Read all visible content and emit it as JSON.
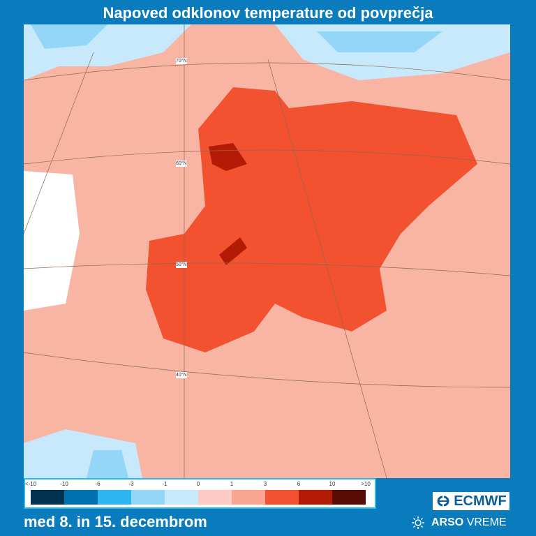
{
  "title": "Napoved odklonov temperature od povprečja",
  "period": "med 8. in 15. decembrom",
  "latitude_labels": [
    "70°N",
    "60°N",
    "50°N",
    "40°N"
  ],
  "legend": {
    "labels": [
      "<-10",
      "-10",
      "-6",
      "-3",
      "-1",
      "0",
      "1",
      "3",
      "6",
      "10",
      ">10"
    ],
    "colors": [
      "#01324f",
      "#0070b0",
      "#2db6f2",
      "#94d6f8",
      "#c8e9fb",
      "#fdcbc3",
      "#f9a592",
      "#f2522f",
      "#b31b06",
      "#590b05"
    ]
  },
  "logos": {
    "ecmwf": "ECMWF",
    "arso_bold": "ARSO",
    "arso_rest": "VREME"
  }
}
